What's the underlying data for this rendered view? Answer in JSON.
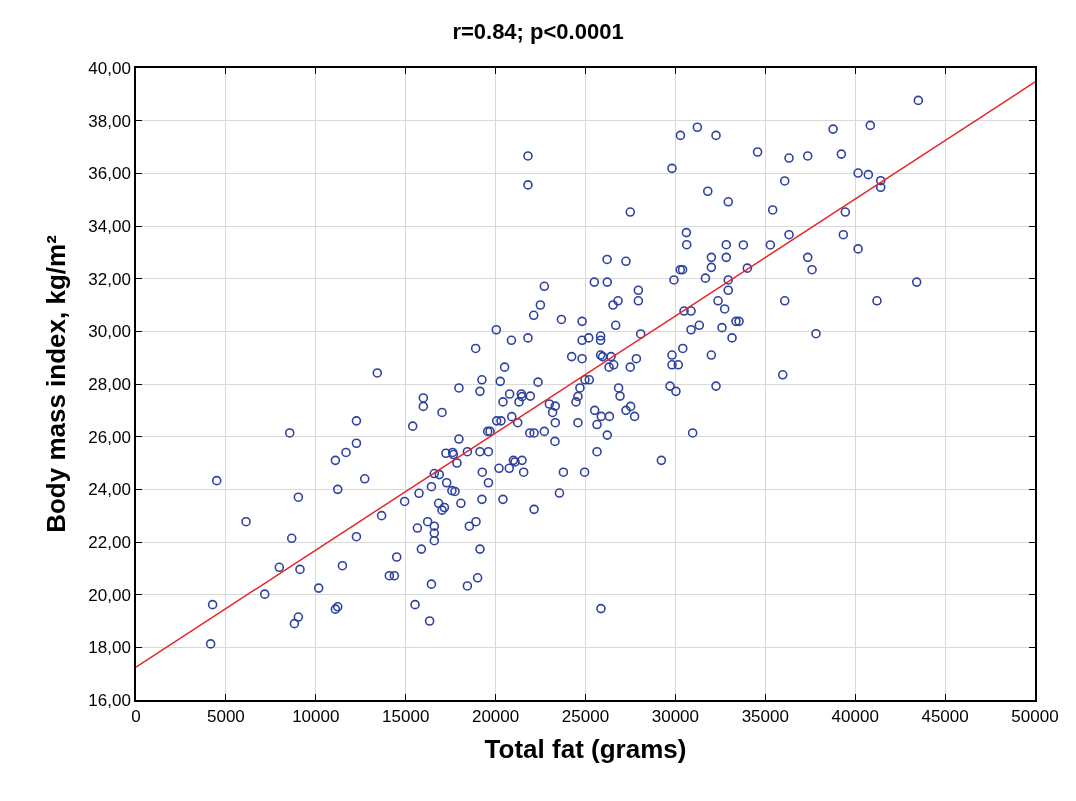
{
  "chart_data": {
    "type": "scatter",
    "title": "r=0.84; p<0.0001",
    "xlabel": "Total fat (grams)",
    "ylabel": "Body mass index, kg/m²",
    "xlim": [
      0,
      50000
    ],
    "ylim": [
      16,
      40
    ],
    "xticks": [
      0,
      5000,
      10000,
      15000,
      20000,
      25000,
      30000,
      35000,
      40000,
      45000,
      50000
    ],
    "yticks": [
      {
        "value": 16,
        "label": "16,00"
      },
      {
        "value": 18,
        "label": "18,00"
      },
      {
        "value": 20,
        "label": "20,00"
      },
      {
        "value": 22,
        "label": "22,00"
      },
      {
        "value": 24,
        "label": "24,00"
      },
      {
        "value": 26,
        "label": "26,00"
      },
      {
        "value": 28,
        "label": "28,00"
      },
      {
        "value": 30,
        "label": "30,00"
      },
      {
        "value": 32,
        "label": "32,00"
      },
      {
        "value": 34,
        "label": "34,00"
      },
      {
        "value": 36,
        "label": "36,00"
      },
      {
        "value": 38,
        "label": "38,00"
      },
      {
        "value": 40,
        "label": "40,00"
      }
    ],
    "grid": true,
    "series": [
      {
        "marker": "circle",
        "color": "#2e41a0",
        "x": [
          15980,
          15980,
          12260,
          15390,
          8550,
          12260,
          11680,
          11090,
          16590,
          4490,
          11220,
          16430,
          15740,
          12720,
          9030,
          14940,
          6120,
          13660,
          16220,
          15650,
          8660,
          12260,
          16590,
          16590,
          16590,
          15870,
          14500,
          7970,
          9120,
          11480,
          14090,
          14370,
          16430,
          7160,
          10160,
          4260,
          11090,
          11220,
          15520,
          9030,
          8810,
          16330,
          4150,
          13420,
          17960,
          19130,
          20780,
          21430,
          21470,
          21930,
          20410,
          21300,
          17020,
          22990,
          23320,
          23170,
          20060,
          20300,
          20900,
          21230,
          23320,
          24470,
          24580,
          24690,
          24580,
          19560,
          19690,
          21900,
          22140,
          22710,
          17960,
          23300,
          17240,
          17610,
          17650,
          18430,
          19130,
          19600,
          17850,
          20990,
          21080,
          21470,
          20190,
          20760,
          19260,
          21560,
          23770,
          24950,
          16870,
          17280,
          19600,
          17570,
          17740,
          23550,
          16830,
          18070,
          19240,
          20410,
          17020,
          17150,
          22140,
          18540,
          18910,
          19130,
          19000,
          18430,
          25860,
          25510,
          25880,
          26330,
          25640,
          26210,
          25640,
          26840,
          26920,
          27250,
          27510,
          27730,
          29700,
          30030,
          32260,
          30960,
          29220,
          21800,
          21800,
          27490,
          30280,
          31220,
          32260,
          29810,
          31800,
          32940,
          30610,
          30630,
          32830,
          26200,
          27250,
          32000,
          32830,
          30270,
          30400,
          32000,
          25490,
          26210,
          29920,
          31670,
          32940,
          22710,
          27940,
          32940,
          27940,
          26530,
          26810,
          22490,
          32370,
          22120,
          30480,
          30870,
          32740,
          23660,
          24810,
          26680,
          31330,
          30870,
          32590,
          33370,
          20040,
          33150,
          20880,
          21800,
          24810,
          25180,
          25840,
          25840,
          28070,
          18890,
          20500,
          24230,
          24810,
          25840,
          25950,
          26420,
          26310,
          26570,
          27490,
          27830,
          29810,
          29810,
          30160,
          30410,
          32000,
          19240,
          20260,
          22360,
          24970,
          25210,
          43510,
          38770,
          40840,
          34570,
          36320,
          37360,
          39230,
          40160,
          40730,
          41420,
          41420,
          36080,
          35410,
          39450,
          33780,
          35280,
          36320,
          39340,
          40160,
          37360,
          37600,
          34000,
          36080,
          41210,
          43420,
          33540,
          37820,
          35970
        ],
        "values": [
          27.47,
          27.15,
          26.6,
          26.4,
          26.14,
          25.75,
          25.4,
          25.1,
          24.6,
          24.33,
          24.0,
          24.1,
          23.85,
          24.4,
          23.7,
          23.54,
          22.77,
          23.0,
          22.77,
          22.53,
          22.14,
          22.2,
          22.6,
          22.34,
          22.05,
          21.73,
          21.43,
          21.04,
          20.96,
          21.1,
          20.72,
          20.72,
          20.4,
          20.02,
          20.25,
          19.62,
          19.45,
          19.54,
          19.62,
          19.15,
          18.9,
          19.0,
          18.13,
          28.42,
          27.85,
          27.72,
          27.62,
          27.62,
          27.52,
          27.54,
          27.32,
          27.32,
          26.92,
          27.24,
          27.16,
          26.92,
          26.6,
          26.6,
          26.76,
          26.53,
          26.53,
          27.32,
          27.53,
          27.85,
          26.53,
          26.2,
          26.2,
          26.14,
          26.14,
          26.2,
          25.91,
          25.82,
          25.37,
          25.4,
          25.32,
          25.43,
          25.43,
          25.43,
          25.0,
          25.1,
          25.04,
          25.1,
          24.8,
          24.8,
          24.65,
          24.65,
          24.65,
          24.65,
          24.56,
          24.25,
          24.25,
          23.95,
          23.92,
          23.86,
          23.47,
          23.47,
          23.62,
          23.62,
          23.21,
          23.31,
          23.24,
          22.6,
          22.77,
          21.73,
          20.64,
          20.33,
          19.47,
          27.0,
          26.77,
          26.77,
          26.46,
          26.06,
          25.43,
          27.85,
          27.54,
          27.0,
          27.15,
          26.77,
          27.92,
          27.72,
          27.92,
          26.14,
          25.1,
          36.66,
          35.56,
          34.53,
          37.44,
          37.75,
          37.44,
          36.19,
          35.32,
          34.92,
          33.75,
          33.29,
          33.29,
          32.73,
          32.66,
          32.81,
          32.81,
          32.34,
          32.34,
          32.43,
          31.87,
          31.87,
          31.95,
          32.02,
          31.95,
          31.71,
          31.56,
          31.56,
          31.16,
          31.0,
          31.16,
          31.0,
          31.16,
          30.61,
          30.77,
          30.77,
          30.85,
          30.45,
          30.38,
          30.23,
          30.23,
          30.06,
          30.14,
          30.38,
          30.06,
          29.75,
          29.66,
          29.75,
          29.66,
          29.75,
          29.82,
          29.66,
          29.9,
          29.35,
          28.64,
          29.04,
          28.96,
          29.1,
          29.04,
          29.04,
          28.64,
          28.73,
          28.64,
          28.96,
          29.1,
          28.73,
          28.73,
          29.35,
          29.1,
          28.16,
          28.1,
          28.07,
          28.16,
          28.16,
          38.77,
          37.68,
          37.82,
          36.81,
          36.58,
          36.66,
          36.73,
          36.01,
          35.95,
          35.72,
          35.47,
          35.71,
          34.61,
          34.53,
          33.28,
          33.28,
          33.67,
          33.67,
          33.13,
          32.81,
          32.34,
          32.4,
          31.16,
          31.16,
          31.87,
          30.38,
          29.91,
          28.35
        ]
      },
      {
        "type": "line",
        "line_style": "solid",
        "color": "#e8242a",
        "x": [
          0,
          50000
        ],
        "values": [
          17.25,
          39.47
        ]
      }
    ]
  }
}
